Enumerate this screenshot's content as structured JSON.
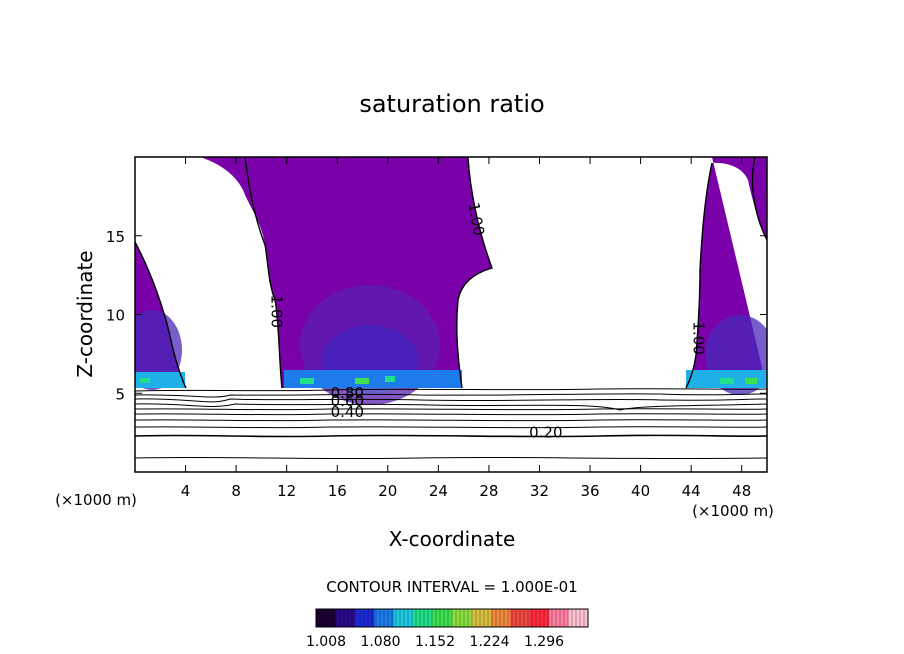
{
  "chart_data": {
    "type": "contour",
    "title": "saturation ratio",
    "xlabel": "X-coordinate",
    "ylabel": "Z-coordinate",
    "x_unit": "(×1000 m)",
    "y_unit": "(×1000 m)",
    "xlim": [
      0,
      50
    ],
    "ylim": [
      0,
      20
    ],
    "x_ticks": [
      4,
      8,
      12,
      16,
      20,
      24,
      28,
      32,
      36,
      40,
      44,
      48
    ],
    "y_ticks": [
      5,
      10,
      15
    ],
    "contour_interval_text": "CONTOUR INTERVAL = 1.000E-01",
    "contour_labels": [
      {
        "text": "1.00",
        "x": 26.6,
        "z": 16.0,
        "rotate": 80
      },
      {
        "text": "1.00",
        "x": 10.8,
        "z": 10.2,
        "rotate": 90
      },
      {
        "text": "1.00",
        "x": 44.2,
        "z": 8.5,
        "rotate": 90
      },
      {
        "text": "0.80",
        "x": 16.8,
        "z": 4.7,
        "rotate": 0
      },
      {
        "text": "0.60",
        "x": 16.8,
        "z": 4.2,
        "rotate": 0
      },
      {
        "text": "0.40",
        "x": 16.8,
        "z": 3.5,
        "rotate": 0
      },
      {
        "text": "0.20",
        "x": 32.5,
        "z": 2.2,
        "rotate": 0
      }
    ],
    "colorbar": {
      "tick_labels": [
        "1.008",
        "1.080",
        "1.152",
        "1.224",
        "1.296"
      ],
      "colors": [
        "#1a0033",
        "#2a0a8a",
        "#1d2bd6",
        "#1d7bea",
        "#1fc9e0",
        "#22e08a",
        "#3ee050",
        "#8ae040",
        "#d8c040",
        "#f08a40",
        "#f04a40",
        "#ff2a40",
        "#ff80a0",
        "#ffc0d0"
      ]
    },
    "fill_color": "#7a00aa",
    "supersaturated_regions": [
      {
        "name": "left",
        "x_range": [
          0,
          4.8
        ],
        "z_range": [
          5.5,
          14.5
        ]
      },
      {
        "name": "center",
        "x_range": [
          11,
          27
        ],
        "z_range": [
          5.5,
          20
        ]
      },
      {
        "name": "right",
        "x_range": [
          42.5,
          50
        ],
        "z_range": [
          5.5,
          20
        ]
      }
    ]
  }
}
